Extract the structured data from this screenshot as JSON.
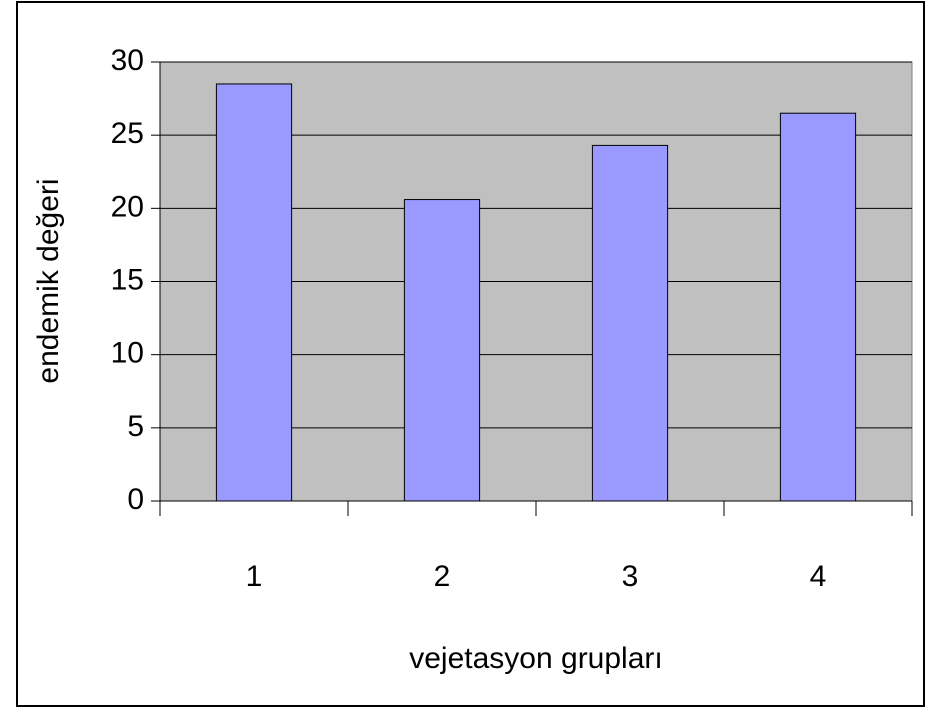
{
  "chart_data": {
    "type": "bar",
    "categories": [
      "1",
      "2",
      "3",
      "4"
    ],
    "values": [
      28.5,
      20.6,
      24.3,
      26.5
    ],
    "color": "#9999ff",
    "plot_background": "#c0c0c0",
    "x_label": "vejetasyon grupları",
    "y_label": "endemik değeri",
    "ylim": [
      0,
      30
    ],
    "yticks": [
      0,
      5,
      10,
      15,
      20,
      25,
      30
    ],
    "grid": true
  }
}
